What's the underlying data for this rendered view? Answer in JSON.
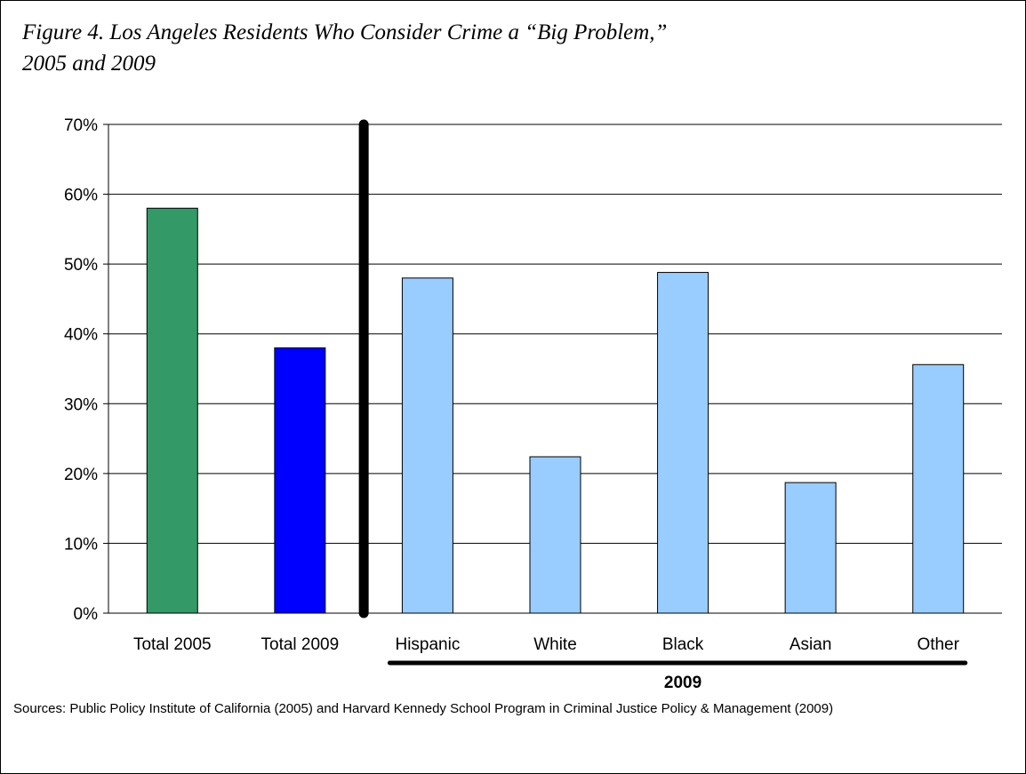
{
  "figure": {
    "title_line1": "Figure 4.  Los Angeles Residents Who Consider Crime a “Big Problem,”",
    "title_line2": "2005 and 2009",
    "source_text": "Sources: Public Policy Institute of California (2005) and Harvard Kennedy School Program in Criminal Justice Policy & Management (2009)"
  },
  "chart_data": {
    "type": "bar",
    "title": "Figure 4.  Los Angeles Residents Who Consider Crime a “Big Problem,” 2005 and 2009",
    "categories": [
      "Total 2005",
      "Total 2009",
      "Hispanic",
      "White",
      "Black",
      "Asian",
      "Other"
    ],
    "values": [
      58,
      38,
      48,
      22.4,
      48.8,
      18.7,
      35.6
    ],
    "bar_colors": [
      "#339966",
      "#0000ff",
      "#99ccff",
      "#99ccff",
      "#99ccff",
      "#99ccff",
      "#99ccff"
    ],
    "unit": "%",
    "ylim": [
      0,
      70
    ],
    "yticks": [
      0,
      10,
      20,
      30,
      40,
      50,
      60,
      70
    ],
    "ytick_labels": [
      "0%",
      "10%",
      "20%",
      "30%",
      "40%",
      "50%",
      "60%",
      "70%"
    ],
    "grid": true,
    "group_label": "2009",
    "group_categories": [
      "Hispanic",
      "White",
      "Black",
      "Asian",
      "Other"
    ],
    "separator_after_category": "Total 2009",
    "xlabel": "",
    "ylabel": ""
  }
}
